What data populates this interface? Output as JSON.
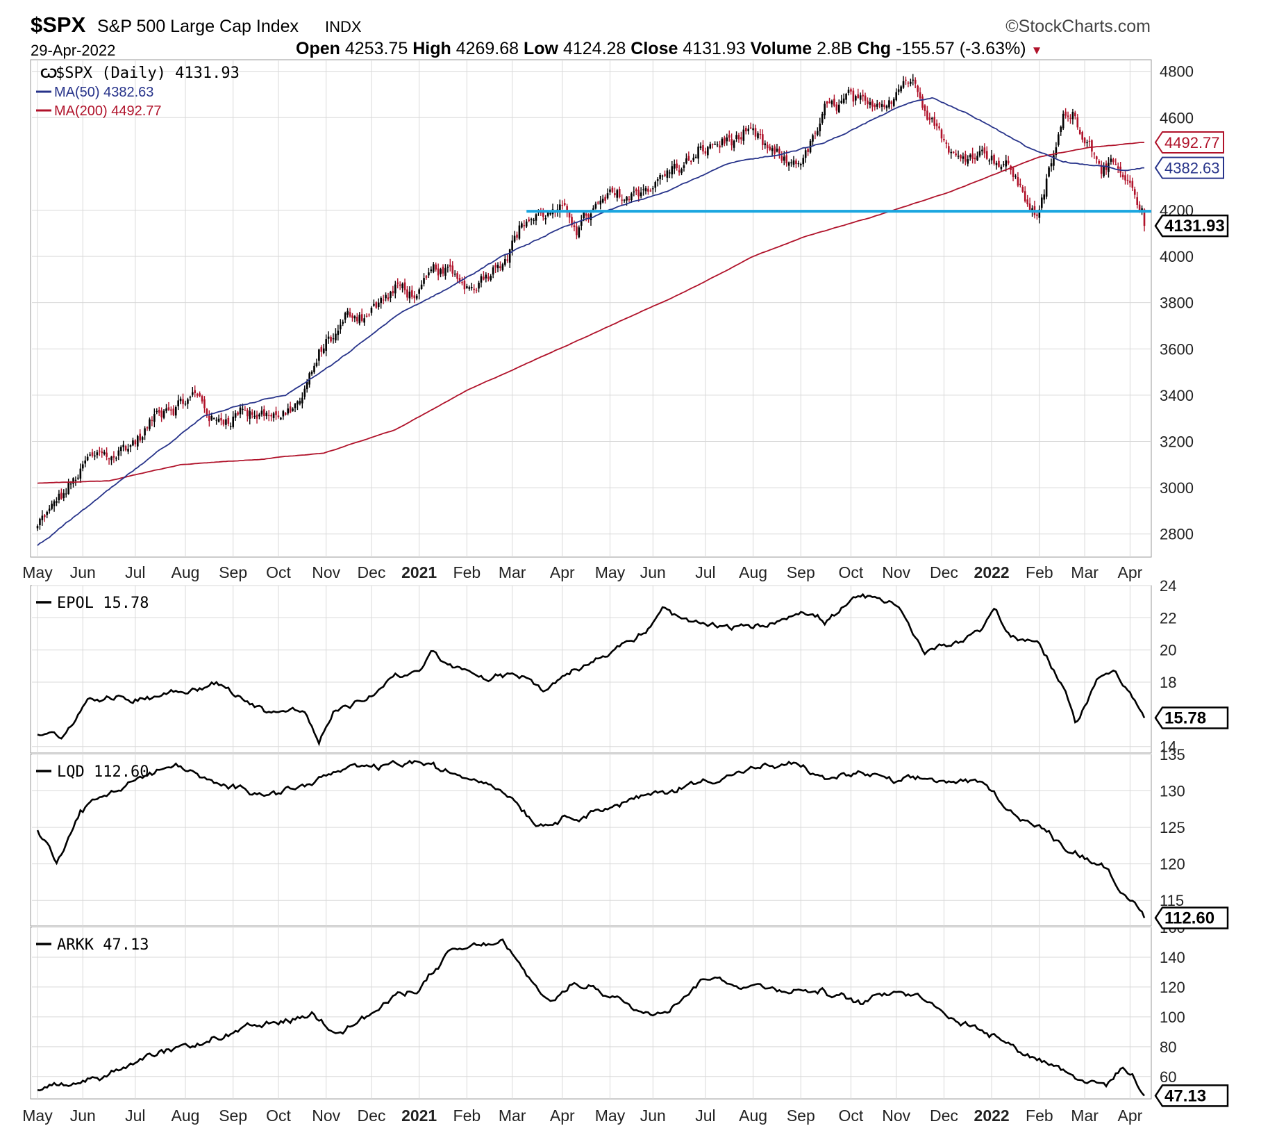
{
  "header": {
    "symbol": "$SPX",
    "name": "S&P 500 Large Cap Index",
    "exchange": "INDX",
    "brand": "©StockCharts.com",
    "date": "29-Apr-2022",
    "open_label": "Open",
    "open": "4253.75",
    "high_label": "High",
    "high": "4269.68",
    "low_label": "Low",
    "low": "4124.28",
    "close_label": "Close",
    "close": "4131.93",
    "volume_label": "Volume",
    "volume": "2.8B",
    "chg_label": "Chg",
    "chg": "-155.57 (-3.63%)",
    "chg_arrow": "▼"
  },
  "colors": {
    "up": "#000000",
    "down": "#b0122a",
    "ma50": "#27338a",
    "ma200": "#b0122a",
    "support": "#1aa6e0",
    "grid": "#d9d9d9",
    "border": "#9a9a9a"
  },
  "chart_data": [
    {
      "type": "candlestick",
      "title": "$SPX (Daily) 4131.93",
      "series_labels": [
        "$SPX (Daily) 4131.93",
        "MA(50) 4382.63",
        "MA(200) 4492.77"
      ],
      "ylim": [
        2700,
        4850
      ],
      "yticks": [
        "4800",
        "4600",
        "4200",
        "4000",
        "3800",
        "3600",
        "3400",
        "3200",
        "3000",
        "2800"
      ],
      "value_tags": [
        {
          "label": "4492.77",
          "value": 4492.77,
          "color": "#b0122a"
        },
        {
          "label": "4382.63",
          "value": 4382.63,
          "color": "#27338a"
        },
        {
          "label": "4131.93",
          "value": 4131.93,
          "color": "#000000",
          "bold": true
        }
      ],
      "support_level": 4195,
      "close_anchors": [
        [
          0,
          2830
        ],
        [
          10,
          2950
        ],
        [
          21,
          3100
        ],
        [
          33,
          3145
        ],
        [
          44,
          3230
        ],
        [
          54,
          3370
        ],
        [
          66,
          3400
        ],
        [
          75,
          3280
        ],
        [
          86,
          3350
        ],
        [
          98,
          3330
        ],
        [
          104,
          3290
        ],
        [
          110,
          3370
        ],
        [
          121,
          3630
        ],
        [
          130,
          3730
        ],
        [
          142,
          3790
        ],
        [
          151,
          3860
        ],
        [
          160,
          3830
        ],
        [
          168,
          3920
        ],
        [
          181,
          3870
        ],
        [
          191,
          3975
        ],
        [
          205,
          4170
        ],
        [
          214,
          4195
        ],
        [
          226,
          4140
        ],
        [
          238,
          4220
        ],
        [
          248,
          4250
        ],
        [
          260,
          4340
        ],
        [
          272,
          4400
        ],
        [
          283,
          4470
        ],
        [
          296,
          4520
        ],
        [
          306,
          4430
        ],
        [
          314,
          4380
        ],
        [
          322,
          4440
        ],
        [
          330,
          4600
        ],
        [
          340,
          4670
        ],
        [
          348,
          4590
        ],
        [
          356,
          4690
        ],
        [
          364,
          4795
        ],
        [
          373,
          4680
        ],
        [
          380,
          4530
        ],
        [
          386,
          4410
        ],
        [
          394,
          4470
        ],
        [
          400,
          4460
        ],
        [
          408,
          4380
        ],
        [
          414,
          4250
        ],
        [
          420,
          4190
        ],
        [
          430,
          4580
        ],
        [
          434,
          4630
        ],
        [
          442,
          4490
        ],
        [
          450,
          4390
        ],
        [
          458,
          4270
        ],
        [
          462,
          4145
        ],
        [
          464,
          4131.93
        ]
      ],
      "ma50_anchors": [
        [
          0,
          2750
        ],
        [
          15,
          2870
        ],
        [
          30,
          2990
        ],
        [
          50,
          3150
        ],
        [
          70,
          3310
        ],
        [
          85,
          3360
        ],
        [
          104,
          3400
        ],
        [
          125,
          3540
        ],
        [
          150,
          3740
        ],
        [
          175,
          3880
        ],
        [
          195,
          4000
        ],
        [
          215,
          4100
        ],
        [
          240,
          4200
        ],
        [
          265,
          4290
        ],
        [
          290,
          4400
        ],
        [
          310,
          4440
        ],
        [
          330,
          4490
        ],
        [
          350,
          4590
        ],
        [
          365,
          4660
        ],
        [
          375,
          4690
        ],
        [
          395,
          4590
        ],
        [
          415,
          4470
        ],
        [
          430,
          4410
        ],
        [
          445,
          4390
        ],
        [
          455,
          4370
        ],
        [
          464,
          4382.63
        ]
      ],
      "ma200_anchors": [
        [
          0,
          3020
        ],
        [
          30,
          3030
        ],
        [
          60,
          3100
        ],
        [
          90,
          3120
        ],
        [
          120,
          3150
        ],
        [
          150,
          3250
        ],
        [
          180,
          3420
        ],
        [
          210,
          3560
        ],
        [
          240,
          3700
        ],
        [
          270,
          3840
        ],
        [
          300,
          4000
        ],
        [
          320,
          4080
        ],
        [
          350,
          4170
        ],
        [
          380,
          4270
        ],
        [
          400,
          4350
        ],
        [
          420,
          4430
        ],
        [
          440,
          4470
        ],
        [
          464,
          4492.77
        ]
      ],
      "x_month_labels": [
        {
          "label": "May",
          "i": 0
        },
        {
          "label": "Jun",
          "i": 19
        },
        {
          "label": "Jul",
          "i": 41
        },
        {
          "label": "Aug",
          "i": 62
        },
        {
          "label": "Sep",
          "i": 82
        },
        {
          "label": "Oct",
          "i": 101
        },
        {
          "label": "Nov",
          "i": 121
        },
        {
          "label": "Dec",
          "i": 140
        },
        {
          "label": "2021",
          "i": 160,
          "bold": true
        },
        {
          "label": "Feb",
          "i": 180
        },
        {
          "label": "Mar",
          "i": 199
        },
        {
          "label": "Apr",
          "i": 220
        },
        {
          "label": "May",
          "i": 240
        },
        {
          "label": "Jun",
          "i": 258
        },
        {
          "label": "Jul",
          "i": 280
        },
        {
          "label": "Aug",
          "i": 300
        },
        {
          "label": "Sep",
          "i": 320
        },
        {
          "label": "Oct",
          "i": 341
        },
        {
          "label": "Nov",
          "i": 360
        },
        {
          "label": "Dec",
          "i": 380
        },
        {
          "label": "2022",
          "i": 400,
          "bold": true
        },
        {
          "label": "Feb",
          "i": 420
        },
        {
          "label": "Mar",
          "i": 439
        },
        {
          "label": "Apr",
          "i": 458
        }
      ]
    },
    {
      "type": "line",
      "title": "EPOL 15.78",
      "ylim": [
        13.6,
        24
      ],
      "yticks": [
        "24",
        "22",
        "20",
        "18",
        "14"
      ],
      "value_tag": {
        "label": "15.78",
        "value": 15.78
      },
      "anchors": [
        [
          0,
          14.8
        ],
        [
          10,
          14.5
        ],
        [
          22,
          17.2
        ],
        [
          40,
          16.9
        ],
        [
          60,
          17.6
        ],
        [
          75,
          17.9
        ],
        [
          95,
          16.3
        ],
        [
          112,
          16.2
        ],
        [
          118,
          14.2
        ],
        [
          125,
          16.2
        ],
        [
          140,
          17.1
        ],
        [
          150,
          18.6
        ],
        [
          160,
          18.5
        ],
        [
          165,
          19.7
        ],
        [
          175,
          18.8
        ],
        [
          190,
          18.2
        ],
        [
          205,
          18.5
        ],
        [
          212,
          17.4
        ],
        [
          225,
          18.9
        ],
        [
          245,
          20.3
        ],
        [
          255,
          21.1
        ],
        [
          262,
          22.4
        ],
        [
          275,
          21.5
        ],
        [
          290,
          21.3
        ],
        [
          305,
          21.5
        ],
        [
          320,
          22.6
        ],
        [
          330,
          21.8
        ],
        [
          345,
          23.3
        ],
        [
          360,
          22.6
        ],
        [
          372,
          19.9
        ],
        [
          385,
          20.6
        ],
        [
          396,
          21.4
        ],
        [
          401,
          22.7
        ],
        [
          408,
          20.8
        ],
        [
          420,
          20.5
        ],
        [
          430,
          17.6
        ],
        [
          435,
          15.3
        ],
        [
          444,
          18.1
        ],
        [
          452,
          18.8
        ],
        [
          460,
          17.0
        ],
        [
          464,
          15.78
        ]
      ]
    },
    {
      "type": "line",
      "title": "LQD 112.60",
      "ylim": [
        111.5,
        135
      ],
      "yticks": [
        "135",
        "130",
        "125",
        "120",
        "115"
      ],
      "value_tag": {
        "label": "112.60",
        "value": 112.6
      },
      "anchors": [
        [
          0,
          124.5
        ],
        [
          8,
          120.5
        ],
        [
          18,
          127.5
        ],
        [
          40,
          131.5
        ],
        [
          60,
          133.5
        ],
        [
          75,
          130.5
        ],
        [
          100,
          130.0
        ],
        [
          110,
          130.5
        ],
        [
          125,
          132.5
        ],
        [
          140,
          133.0
        ],
        [
          160,
          134.0
        ],
        [
          170,
          132.5
        ],
        [
          190,
          131.5
        ],
        [
          200,
          129.0
        ],
        [
          210,
          125.5
        ],
        [
          222,
          126.5
        ],
        [
          240,
          128.0
        ],
        [
          260,
          129.5
        ],
        [
          280,
          131.5
        ],
        [
          300,
          133.0
        ],
        [
          320,
          133.5
        ],
        [
          330,
          131.5
        ],
        [
          345,
          132.5
        ],
        [
          360,
          131.0
        ],
        [
          375,
          131.5
        ],
        [
          395,
          131.0
        ],
        [
          410,
          127.0
        ],
        [
          420,
          125.0
        ],
        [
          430,
          122.5
        ],
        [
          440,
          121.0
        ],
        [
          449,
          119.5
        ],
        [
          458,
          114.5
        ],
        [
          464,
          112.6
        ]
      ]
    },
    {
      "type": "line",
      "title": "ARKK 47.13",
      "ylim": [
        45,
        160
      ],
      "yticks": [
        "160",
        "140",
        "120",
        "100",
        "80",
        "60"
      ],
      "value_tag": {
        "label": "47.13",
        "value": 47.13
      },
      "anchors": [
        [
          0,
          52
        ],
        [
          20,
          58
        ],
        [
          40,
          67
        ],
        [
          60,
          78
        ],
        [
          80,
          88
        ],
        [
          100,
          95
        ],
        [
          115,
          102
        ],
        [
          125,
          92
        ],
        [
          140,
          102
        ],
        [
          150,
          113
        ],
        [
          160,
          120
        ],
        [
          172,
          141
        ],
        [
          185,
          147
        ],
        [
          195,
          150
        ],
        [
          205,
          126
        ],
        [
          215,
          110
        ],
        [
          225,
          122
        ],
        [
          235,
          120
        ],
        [
          245,
          110
        ],
        [
          255,
          102
        ],
        [
          265,
          108
        ],
        [
          280,
          127
        ],
        [
          295,
          122
        ],
        [
          310,
          120
        ],
        [
          330,
          117
        ],
        [
          345,
          108
        ],
        [
          360,
          119
        ],
        [
          375,
          112
        ],
        [
          385,
          98
        ],
        [
          400,
          90
        ],
        [
          410,
          79
        ],
        [
          425,
          69
        ],
        [
          440,
          58
        ],
        [
          448,
          54
        ],
        [
          455,
          67
        ],
        [
          460,
          58
        ],
        [
          464,
          47.13
        ]
      ]
    }
  ]
}
